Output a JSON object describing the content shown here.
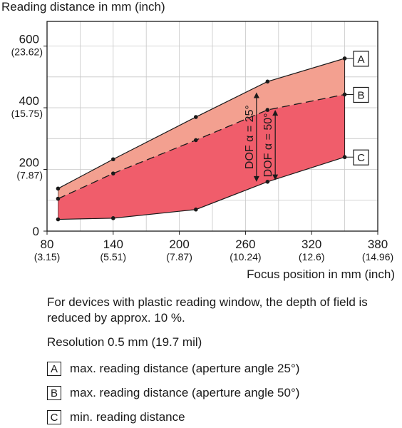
{
  "chart_data": {
    "type": "area",
    "title": "Reading distance in mm (inch)",
    "xlabel": "Focus position in mm (inch)",
    "xlim": [
      80,
      380
    ],
    "ylim": [
      0,
      680
    ],
    "x_ticks": [
      {
        "value": 80,
        "label": "80",
        "sublabel": "(3.15)"
      },
      {
        "value": 140,
        "label": "140",
        "sublabel": "(5.51)"
      },
      {
        "value": 200,
        "label": "200",
        "sublabel": "(7.87)"
      },
      {
        "value": 260,
        "label": "260",
        "sublabel": "(10.24)"
      },
      {
        "value": 320,
        "label": "320",
        "sublabel": "(12.6)"
      },
      {
        "value": 380,
        "label": "380",
        "sublabel": "(14.96)"
      }
    ],
    "y_ticks": [
      {
        "value": 0,
        "label": "0",
        "sublabel": ""
      },
      {
        "value": 200,
        "label": "200",
        "sublabel": "(7.87)"
      },
      {
        "value": 400,
        "label": "400",
        "sublabel": "(15.75)"
      },
      {
        "value": 600,
        "label": "600",
        "sublabel": "(23.62)"
      }
    ],
    "series": [
      {
        "name": "A",
        "color": "#f3a090",
        "x": [
          90,
          140,
          215,
          280,
          350
        ],
        "y": [
          138,
          233,
          370,
          485,
          560
        ]
      },
      {
        "name": "B",
        "color": "#f05d6b",
        "x": [
          90,
          140,
          215,
          280,
          350
        ],
        "y": [
          105,
          187,
          295,
          393,
          443
        ]
      },
      {
        "name": "C",
        "color": "#f05d6b",
        "x": [
          90,
          140,
          215,
          280,
          350
        ],
        "y": [
          38,
          42,
          70,
          160,
          240
        ]
      }
    ],
    "annotations": [
      {
        "text": "DOF α = 25°",
        "x": 270,
        "y_from": 450,
        "y_to": 160
      },
      {
        "text": "DOF α = 50°",
        "x": 287,
        "y_from": 393,
        "y_to": 165
      }
    ],
    "grid": true
  },
  "footnote": "For devices with plastic reading window, the depth of field is reduced by approx. 10 %.",
  "resolution": "Resolution 0.5 mm (19.7 mil)",
  "legend": [
    {
      "key": "A",
      "text": "max. reading distance (aperture angle 25°)"
    },
    {
      "key": "B",
      "text": "max. reading distance (aperture angle 50°)"
    },
    {
      "key": "C",
      "text": "min. reading distance"
    }
  ]
}
